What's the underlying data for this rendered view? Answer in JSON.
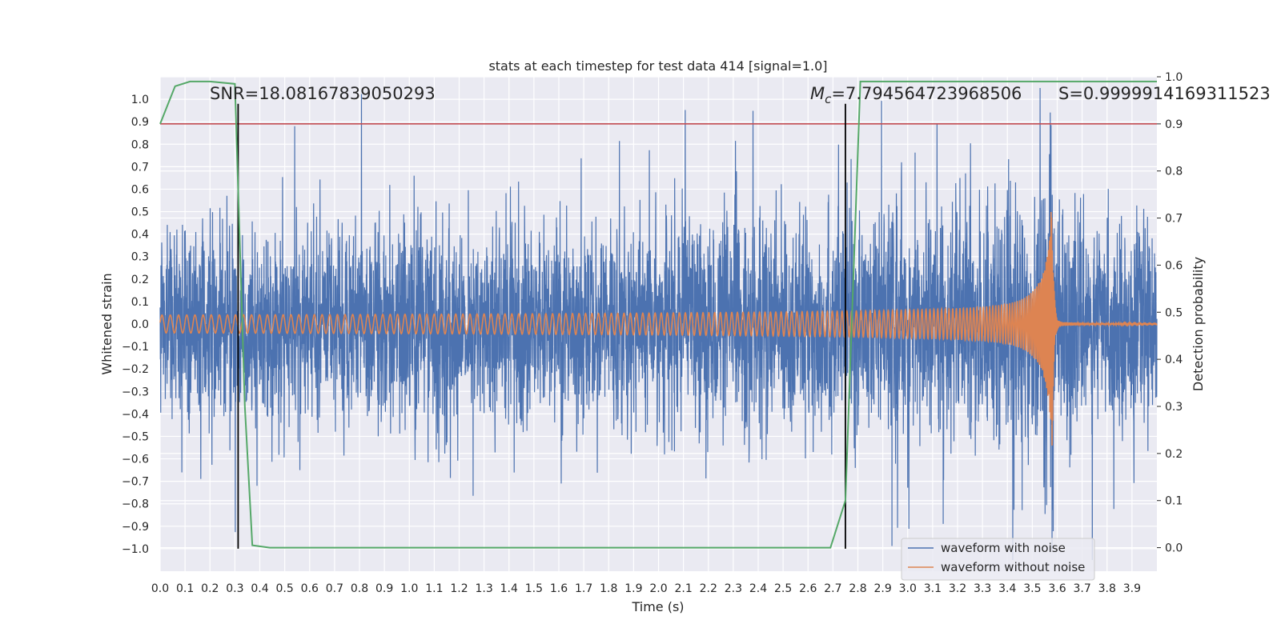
{
  "chart_data": {
    "type": "line",
    "title": "stats at each timestep for test data 414 [signal=1.0]",
    "xlabel": "Time (s)",
    "ylabel": "Whitened strain",
    "y2label": "Detection probability",
    "xlim": [
      0.0,
      4.0
    ],
    "ylim": [
      -1.1,
      1.1
    ],
    "y2lim": [
      -0.05,
      1.0
    ],
    "x_ticks": [
      "0.0",
      "0.1",
      "0.2",
      "0.3",
      "0.4",
      "0.5",
      "0.6",
      "0.7",
      "0.8",
      "0.9",
      "1.0",
      "1.1",
      "1.2",
      "1.3",
      "1.4",
      "1.5",
      "1.6",
      "1.7",
      "1.8",
      "1.9",
      "2.0",
      "2.1",
      "2.2",
      "2.3",
      "2.4",
      "2.5",
      "2.6",
      "2.7",
      "2.8",
      "2.9",
      "3.0",
      "3.1",
      "3.2",
      "3.3",
      "3.4",
      "3.5",
      "3.6",
      "3.7",
      "3.8",
      "3.9"
    ],
    "y_ticks": [
      "1.0",
      "0.9",
      "0.8",
      "0.7",
      "0.6",
      "0.5",
      "0.4",
      "0.3",
      "0.2",
      "0.1",
      "0.0",
      "−0.1",
      "−0.2",
      "−0.3",
      "−0.4",
      "−0.5",
      "−0.6",
      "−0.7",
      "−0.8",
      "−0.9",
      "−1.0"
    ],
    "y2_ticks": [
      "1.0",
      "0.9",
      "0.8",
      "0.7",
      "0.6",
      "0.5",
      "0.4",
      "0.3",
      "0.2",
      "0.1",
      "0.0"
    ],
    "grid": true,
    "legend_position": "bottom-right",
    "annotations": {
      "snr": "SNR=18.08167839050293",
      "mc_symbol": "M",
      "mc_subscript": "c",
      "mc_value": "=7.794564723968506",
      "s": "S=0.9999914169311523"
    },
    "threshold": {
      "axis": "y2",
      "value": 0.9,
      "color": "#c44e52"
    },
    "vertical_markers": [
      0.313,
      2.75
    ],
    "series": [
      {
        "name": "waveform with noise",
        "color": "#4c72b0",
        "axis": "y",
        "envelope": {
          "x": [
            0.0,
            1.0,
            2.0,
            3.0,
            3.5,
            3.58,
            3.62,
            4.0
          ],
          "amp": [
            0.55,
            0.58,
            0.6,
            0.65,
            0.72,
            0.8,
            0.6,
            0.55
          ]
        }
      },
      {
        "name": "waveform without noise",
        "color": "#dd8452",
        "axis": "y",
        "chirp": {
          "start_amp": 0.04,
          "peak_amp": 0.55,
          "peak_time": 3.58,
          "start_freq_hz": 30,
          "ringdown_amp": 0.01
        }
      },
      {
        "name": "",
        "color": "#55a868",
        "axis": "y2",
        "x": [
          0.0,
          0.06,
          0.12,
          0.2,
          0.3,
          0.34,
          0.37,
          0.44,
          0.7,
          1.0,
          2.0,
          2.69,
          2.75,
          2.81,
          3.0,
          3.5,
          4.0
        ],
        "y": [
          0.9,
          0.98,
          0.99,
          0.99,
          0.985,
          0.3,
          0.005,
          0.0,
          0.0,
          0.0,
          0.0,
          0.0,
          0.1,
          0.99,
          0.99,
          0.99,
          0.99
        ]
      }
    ]
  }
}
